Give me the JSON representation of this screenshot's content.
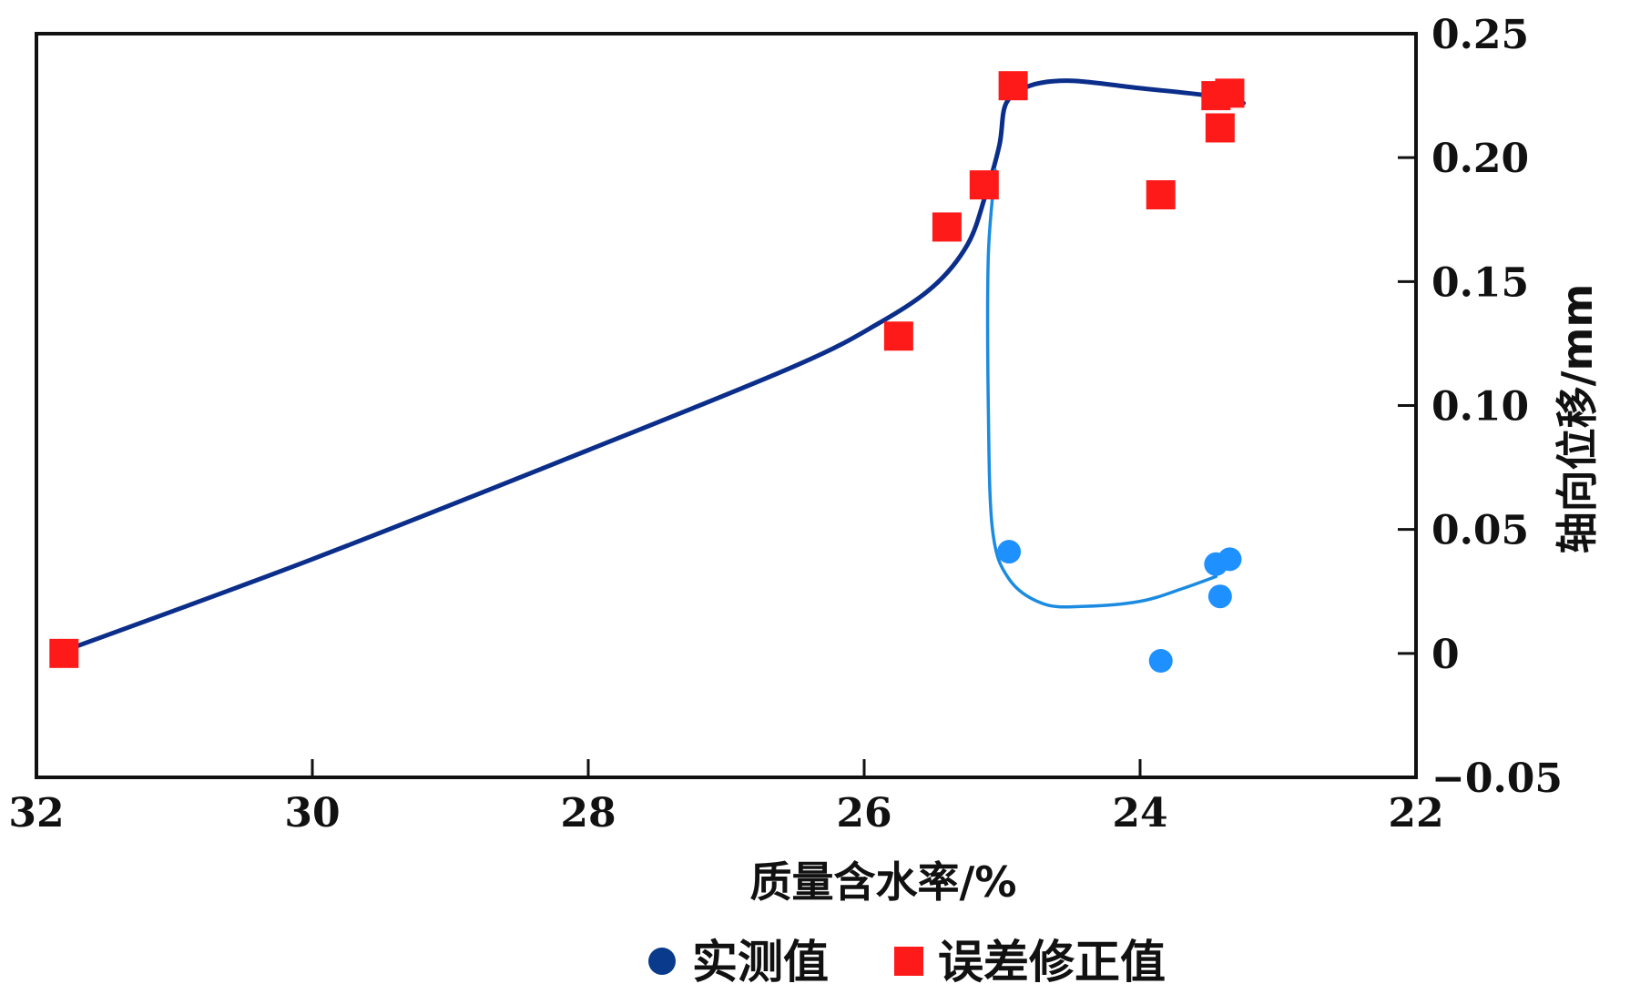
{
  "chart_data": {
    "type": "scatter",
    "xlabel": "质量含水率/%",
    "ylabel": "轴向位移/mm",
    "xlim": [
      32,
      22
    ],
    "ylim": [
      -0.05,
      0.25
    ],
    "x_axis_reversed": true,
    "y_axis_position": "right",
    "x_ticks": [
      {
        "value": 32,
        "label": "32"
      },
      {
        "value": 30,
        "label": "30"
      },
      {
        "value": 28,
        "label": "28"
      },
      {
        "value": 26,
        "label": "26"
      },
      {
        "value": 24,
        "label": "24"
      },
      {
        "value": 22,
        "label": "22"
      }
    ],
    "y_ticks": [
      {
        "value": 0.25,
        "label": "0.25"
      },
      {
        "value": 0.2,
        "label": "0.20"
      },
      {
        "value": 0.15,
        "label": "0.15"
      },
      {
        "value": 0.1,
        "label": "0.10"
      },
      {
        "value": 0.05,
        "label": "0.05"
      },
      {
        "value": 0,
        "label": "0"
      },
      {
        "value": -0.05,
        "label": "−0.05"
      }
    ],
    "grid": false,
    "legend_position": "bottom",
    "series": [
      {
        "name": "实测值",
        "marker": "circle",
        "color": "#1E90FF",
        "legend_color": "#0A3A8C",
        "points": [
          [
            24.95,
            0.041
          ],
          [
            23.45,
            0.036
          ],
          [
            23.35,
            0.038
          ],
          [
            23.42,
            0.023
          ],
          [
            23.85,
            -0.003
          ]
        ]
      },
      {
        "name": "误差修正值",
        "marker": "square",
        "color": "#FF1A1A",
        "points": [
          [
            31.8,
            0.0
          ],
          [
            25.75,
            0.128
          ],
          [
            25.4,
            0.172
          ],
          [
            25.13,
            0.189
          ],
          [
            24.92,
            0.229
          ],
          [
            23.45,
            0.225
          ],
          [
            23.35,
            0.226
          ],
          [
            23.42,
            0.212
          ],
          [
            23.85,
            0.185
          ]
        ]
      }
    ],
    "curves": [
      {
        "color": "#0B2E8A",
        "points": [
          [
            31.85,
            0.0
          ],
          [
            30.0,
            0.038
          ],
          [
            28.0,
            0.082
          ],
          [
            26.5,
            0.116
          ],
          [
            25.9,
            0.133
          ],
          [
            25.5,
            0.148
          ],
          [
            25.25,
            0.165
          ],
          [
            25.12,
            0.185
          ],
          [
            25.02,
            0.205
          ],
          [
            24.97,
            0.222
          ],
          [
            24.8,
            0.229
          ],
          [
            24.5,
            0.231
          ],
          [
            24.0,
            0.228
          ],
          [
            23.5,
            0.225
          ],
          [
            23.25,
            0.222
          ]
        ]
      },
      {
        "color": "#1A8BE0",
        "points": [
          [
            25.05,
            0.195
          ],
          [
            25.1,
            0.16
          ],
          [
            25.1,
            0.1
          ],
          [
            25.07,
            0.05
          ],
          [
            24.95,
            0.03
          ],
          [
            24.7,
            0.02
          ],
          [
            24.4,
            0.019
          ],
          [
            24.0,
            0.021
          ],
          [
            23.7,
            0.026
          ],
          [
            23.45,
            0.031
          ]
        ]
      }
    ]
  }
}
